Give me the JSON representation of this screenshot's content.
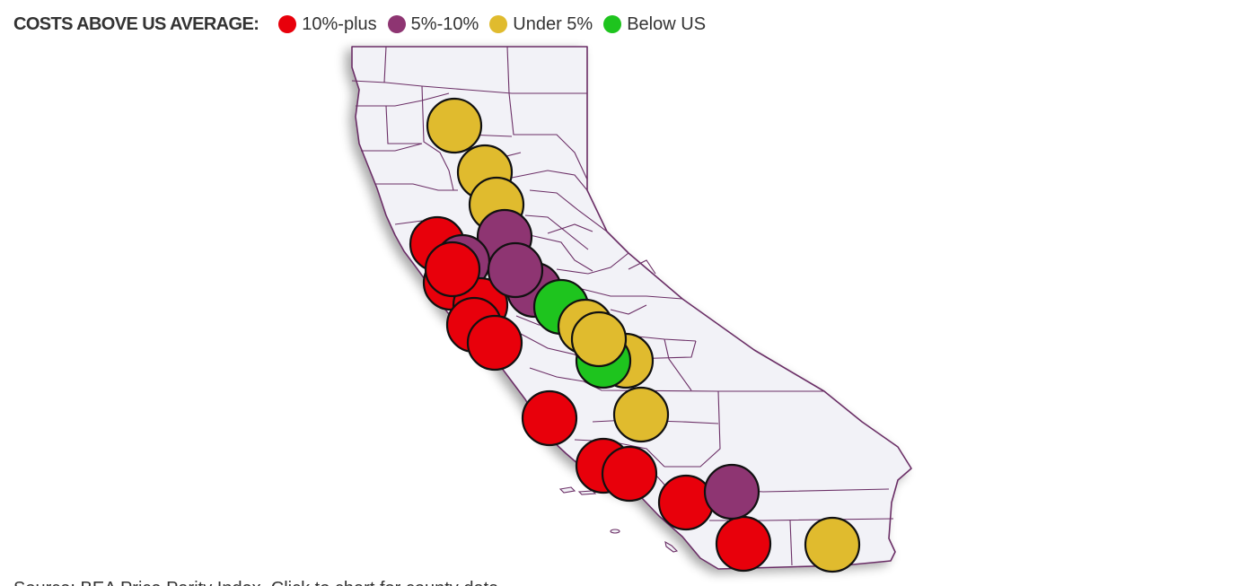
{
  "legend": {
    "title": "COSTS ABOVE US AVERAGE:",
    "items": [
      {
        "label": "10%-plus",
        "color": "#e8000b"
      },
      {
        "label": "5%-10%",
        "color": "#8e3572"
      },
      {
        "label": "Under 5%",
        "color": "#e0bb2e"
      },
      {
        "label": "Below US",
        "color": "#1ec41e"
      }
    ]
  },
  "map": {
    "region": "California",
    "fill_color": "#f2f2f7",
    "border_color": "#6b2f66",
    "markers": [
      {
        "category": "Under 5%"
      },
      {
        "category": "Under 5%"
      },
      {
        "category": "Under 5%"
      },
      {
        "category": "10%-plus"
      },
      {
        "category": "10%-plus"
      },
      {
        "category": "5%-10%"
      },
      {
        "category": "5%-10%"
      },
      {
        "category": "10%-plus"
      },
      {
        "category": "10%-plus"
      },
      {
        "category": "5%-10%"
      },
      {
        "category": "5%-10%"
      },
      {
        "category": "10%-plus"
      },
      {
        "category": "Below US"
      },
      {
        "category": "Under 5%"
      },
      {
        "category": "Under 5%"
      },
      {
        "category": "10%-plus"
      },
      {
        "category": "Below US"
      },
      {
        "category": "Under 5%"
      },
      {
        "category": "Under 5%"
      },
      {
        "category": "10%-plus"
      },
      {
        "category": "10%-plus"
      },
      {
        "category": "10%-plus"
      },
      {
        "category": "10%-plus"
      },
      {
        "category": "5%-10%"
      },
      {
        "category": "10%-plus"
      },
      {
        "category": "Under 5%"
      }
    ]
  },
  "source": {
    "prefix": "Source: BEA Price Parity Index. ",
    "link_text": "Click to chart for county data"
  }
}
